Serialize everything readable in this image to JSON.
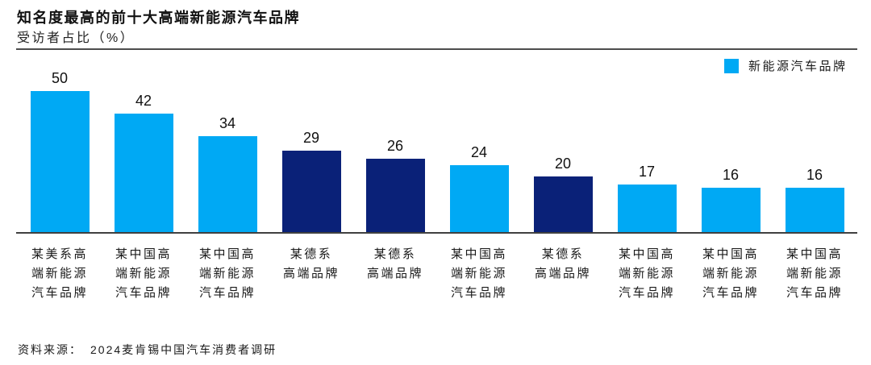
{
  "header": {
    "title": "知名度最高的前十大高端新能源汽车品牌",
    "subtitle": "受访者占比（%）"
  },
  "legend": {
    "label": "新能源汽车品牌",
    "swatch_color": "#00A9F4"
  },
  "colors": {
    "light_blue": "#00A9F4",
    "dark_navy": "#0A2178",
    "axis": "#404040",
    "header_rule": "#4d4d4d"
  },
  "chart_data": {
    "type": "bar",
    "title": "知名度最高的前十大高端新能源汽车品牌",
    "ylabel": "受访者占比（%）",
    "unit": "%",
    "categories": [
      "某美系高端新能源汽车品牌",
      "某中国高端新能源汽车品牌",
      "某中国高端新能源汽车品牌",
      "某德系高端品牌",
      "某德系高端品牌",
      "某中国高端新能源汽车品牌",
      "某德系高端品牌",
      "某中国高端新能源汽车品牌",
      "某中国高端新能源汽车品牌",
      "某中国高端新能源汽车品牌"
    ],
    "values": [
      50,
      42,
      34,
      29,
      26,
      24,
      20,
      17,
      16,
      16
    ],
    "bar_color_keys": [
      "light_blue",
      "light_blue",
      "light_blue",
      "dark_navy",
      "dark_navy",
      "light_blue",
      "dark_navy",
      "light_blue",
      "light_blue",
      "light_blue"
    ],
    "ylim": [
      0,
      50
    ],
    "grid": false,
    "data_labels": true,
    "legend_entries": [
      "新能源汽车品牌"
    ],
    "legend_position": "top-right"
  },
  "bars": [
    {
      "value": "50",
      "label": "某美系高\n端新能源\n汽车品牌",
      "color_key": "light_blue"
    },
    {
      "value": "42",
      "label": "某中国高\n端新能源\n汽车品牌",
      "color_key": "light_blue"
    },
    {
      "value": "34",
      "label": "某中国高\n端新能源\n汽车品牌",
      "color_key": "light_blue"
    },
    {
      "value": "29",
      "label": "某德系\n高端品牌",
      "color_key": "dark_navy"
    },
    {
      "value": "26",
      "label": "某德系\n高端品牌",
      "color_key": "dark_navy"
    },
    {
      "value": "24",
      "label": "某中国高\n端新能源\n汽车品牌",
      "color_key": "light_blue"
    },
    {
      "value": "20",
      "label": "某德系\n高端品牌",
      "color_key": "dark_navy"
    },
    {
      "value": "17",
      "label": "某中国高\n端新能源\n汽车品牌",
      "color_key": "light_blue"
    },
    {
      "value": "16",
      "label": "某中国高\n端新能源\n汽车品牌",
      "color_key": "light_blue"
    },
    {
      "value": "16",
      "label": "某中国高\n端新能源\n汽车品牌",
      "color_key": "light_blue"
    }
  ],
  "footer": {
    "source_label": "资料来源：",
    "source_text": "2024麦肯锡中国汽车消费者调研"
  }
}
